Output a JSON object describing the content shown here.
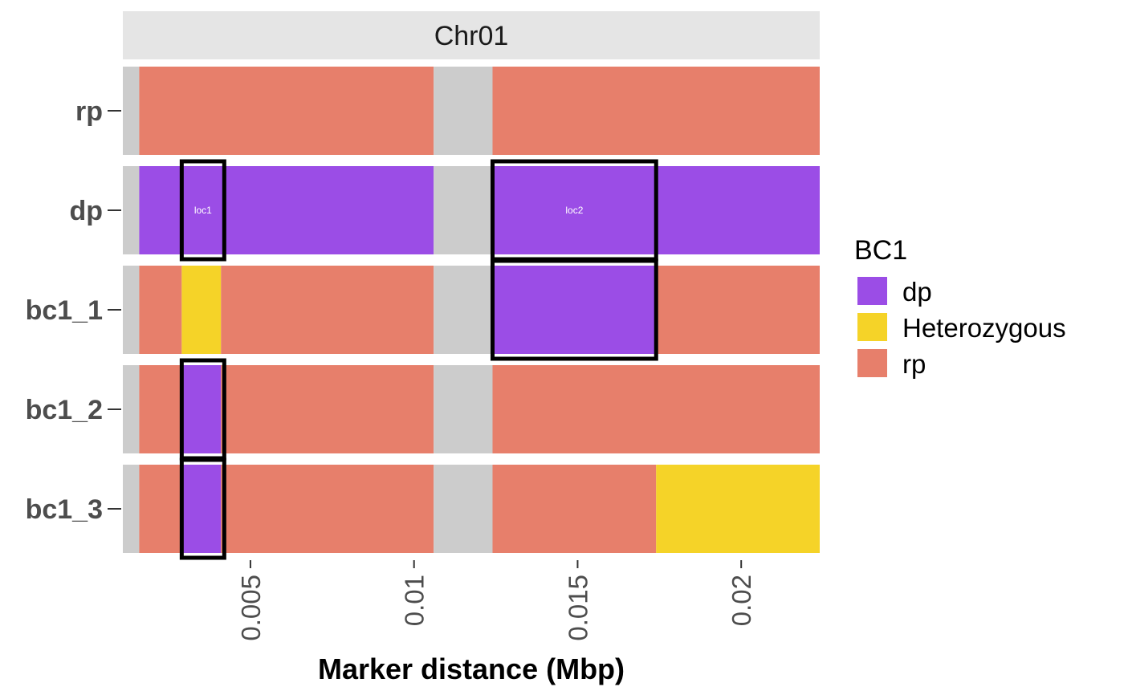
{
  "chart_data": {
    "type": "heatmap",
    "facet_label": "Chr01",
    "xlabel": "Marker distance (Mbp)",
    "ylabel": "",
    "xlim": [
      0.0011,
      0.0224
    ],
    "x_ticks": [
      0.005,
      0.01,
      0.015,
      0.02
    ],
    "x_tick_labels": [
      "0.005",
      "0.01",
      "0.015",
      "0.02"
    ],
    "rows": [
      "rp",
      "dp",
      "bc1_1",
      "bc1_2",
      "bc1_3"
    ],
    "legend": {
      "title": "BC1",
      "position": "right",
      "items": [
        {
          "label": "dp",
          "color": "#9b4de6"
        },
        {
          "label": "Heterozygous",
          "color": "#f5d328"
        },
        {
          "label": "rp",
          "color": "#e77f6b"
        }
      ]
    },
    "missing_color": "#cccccc",
    "segments": [
      {
        "row": "rp",
        "start": 0.0011,
        "end": 0.0016,
        "genotype": "missing"
      },
      {
        "row": "rp",
        "start": 0.0016,
        "end": 0.0106,
        "genotype": "rp"
      },
      {
        "row": "rp",
        "start": 0.0106,
        "end": 0.0124,
        "genotype": "missing"
      },
      {
        "row": "rp",
        "start": 0.0124,
        "end": 0.0224,
        "genotype": "rp"
      },
      {
        "row": "dp",
        "start": 0.0011,
        "end": 0.0016,
        "genotype": "missing"
      },
      {
        "row": "dp",
        "start": 0.0016,
        "end": 0.0106,
        "genotype": "dp"
      },
      {
        "row": "dp",
        "start": 0.0106,
        "end": 0.0124,
        "genotype": "missing"
      },
      {
        "row": "dp",
        "start": 0.0124,
        "end": 0.0224,
        "genotype": "dp"
      },
      {
        "row": "bc1_1",
        "start": 0.0011,
        "end": 0.0016,
        "genotype": "missing"
      },
      {
        "row": "bc1_1",
        "start": 0.0016,
        "end": 0.0029,
        "genotype": "rp"
      },
      {
        "row": "bc1_1",
        "start": 0.0029,
        "end": 0.0041,
        "genotype": "Heterozygous"
      },
      {
        "row": "bc1_1",
        "start": 0.0041,
        "end": 0.0106,
        "genotype": "rp"
      },
      {
        "row": "bc1_1",
        "start": 0.0106,
        "end": 0.0124,
        "genotype": "missing"
      },
      {
        "row": "bc1_1",
        "start": 0.0124,
        "end": 0.0174,
        "genotype": "dp"
      },
      {
        "row": "bc1_1",
        "start": 0.0174,
        "end": 0.0224,
        "genotype": "rp"
      },
      {
        "row": "bc1_2",
        "start": 0.0011,
        "end": 0.0016,
        "genotype": "missing"
      },
      {
        "row": "bc1_2",
        "start": 0.0016,
        "end": 0.0029,
        "genotype": "rp"
      },
      {
        "row": "bc1_2",
        "start": 0.0029,
        "end": 0.0041,
        "genotype": "dp"
      },
      {
        "row": "bc1_2",
        "start": 0.0041,
        "end": 0.0106,
        "genotype": "rp"
      },
      {
        "row": "bc1_2",
        "start": 0.0106,
        "end": 0.0124,
        "genotype": "missing"
      },
      {
        "row": "bc1_2",
        "start": 0.0124,
        "end": 0.0224,
        "genotype": "rp"
      },
      {
        "row": "bc1_3",
        "start": 0.0011,
        "end": 0.0016,
        "genotype": "missing"
      },
      {
        "row": "bc1_3",
        "start": 0.0016,
        "end": 0.0029,
        "genotype": "rp"
      },
      {
        "row": "bc1_3",
        "start": 0.0029,
        "end": 0.0041,
        "genotype": "dp"
      },
      {
        "row": "bc1_3",
        "start": 0.0041,
        "end": 0.0106,
        "genotype": "rp"
      },
      {
        "row": "bc1_3",
        "start": 0.0106,
        "end": 0.0124,
        "genotype": "missing"
      },
      {
        "row": "bc1_3",
        "start": 0.0124,
        "end": 0.0174,
        "genotype": "rp"
      },
      {
        "row": "bc1_3",
        "start": 0.0174,
        "end": 0.0224,
        "genotype": "Heterozygous"
      }
    ],
    "loci": [
      {
        "label": "loc1",
        "start": 0.0029,
        "end": 0.0042,
        "rows": [
          "dp"
        ]
      },
      {
        "label": "",
        "start": 0.0029,
        "end": 0.0042,
        "rows": [
          "bc1_2"
        ]
      },
      {
        "label": "",
        "start": 0.0029,
        "end": 0.0042,
        "rows": [
          "bc1_3"
        ]
      },
      {
        "label": "loc2",
        "start": 0.0124,
        "end": 0.0174,
        "rows": [
          "dp"
        ]
      },
      {
        "label": "",
        "start": 0.0124,
        "end": 0.0174,
        "rows": [
          "bc1_1"
        ]
      }
    ]
  }
}
